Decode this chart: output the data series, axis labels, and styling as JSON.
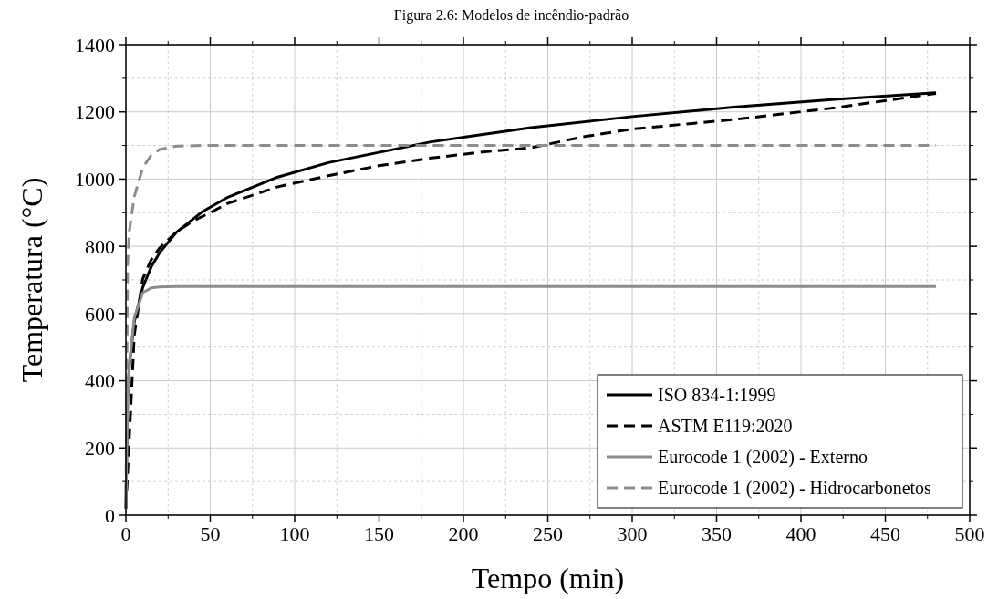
{
  "chart_data": {
    "type": "line",
    "title": "Figura 2.6: Modelos de incêndio-padrão",
    "xlabel": "Tempo (min)",
    "ylabel": "Temperatura (°C)",
    "xlim": [
      0,
      500
    ],
    "xticks": [
      0,
      50,
      100,
      150,
      200,
      250,
      300,
      350,
      400,
      450,
      500
    ],
    "ylim": [
      0,
      1400
    ],
    "yticks": [
      0,
      200,
      400,
      600,
      800,
      1000,
      1200,
      1400
    ],
    "grid": true,
    "legend": "bottom right",
    "series": [
      {
        "name": "ISO 834-1:1999",
        "color": "#000000",
        "line_style": "solid",
        "x": [
          0,
          1,
          2,
          5,
          10,
          15,
          20,
          30,
          45,
          60,
          90,
          120,
          180,
          240,
          300,
          360,
          420,
          480
        ],
        "values": [
          20,
          349,
          444,
          576,
          678,
          739,
          781,
          842,
          902,
          945,
          1006,
          1049,
          1110,
          1153,
          1186,
          1214,
          1237,
          1257
        ]
      },
      {
        "name": "ASTM E119:2020",
        "color": "#000000",
        "line_style": "dashed",
        "x": [
          0,
          5,
          10,
          15,
          20,
          30,
          40,
          50,
          60,
          90,
          120,
          150,
          180,
          210,
          240,
          270,
          300,
          360,
          420,
          480
        ],
        "values": [
          20,
          538,
          704,
          760,
          795,
          843,
          876,
          900,
          927,
          977,
          1010,
          1040,
          1062,
          1080,
          1093,
          1125,
          1149,
          1177,
          1212,
          1255
        ]
      },
      {
        "name": "Eurocode 1 (2002) - Externo",
        "color": "#8c8c8c",
        "line_style": "solid",
        "x": [
          0,
          1,
          2,
          5,
          10,
          15,
          20,
          30,
          480
        ],
        "values": [
          20,
          346,
          441,
          588,
          662,
          676,
          679,
          680,
          680
        ]
      },
      {
        "name": "Eurocode 1 (2002) - Hidrocarbonetos",
        "color": "#8c8c8c",
        "line_style": "dashed",
        "x": [
          0,
          1,
          2,
          5,
          10,
          15,
          20,
          30,
          45,
          480
        ],
        "values": [
          20,
          743,
          844,
          948,
          1034,
          1071,
          1088,
          1098,
          1100,
          1100
        ]
      }
    ]
  }
}
